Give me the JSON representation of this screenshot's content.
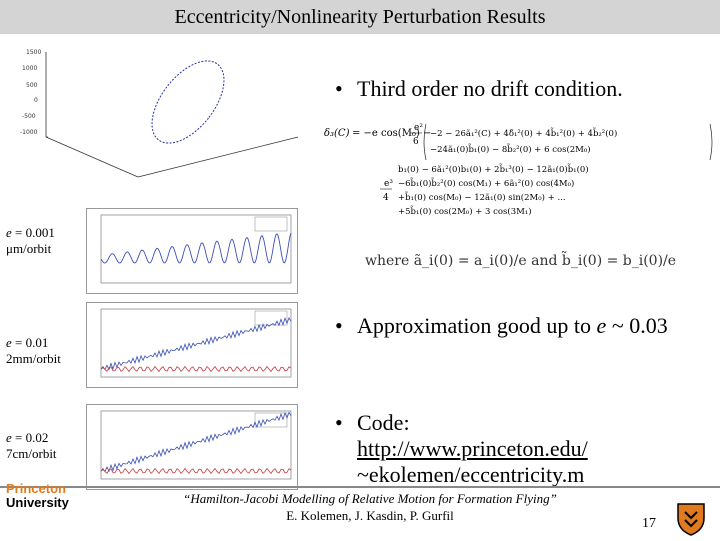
{
  "title": "Eccentricity/Nonlinearity Perturbation Results",
  "bullets": {
    "b1": "Third order no drift condition.",
    "b2_prefix": "Approximation good up to ",
    "b2_var": "e",
    "b2_suffix": " ~ 0.03",
    "b3_label": "Code:",
    "b3_link": "http://www.princeton.edu/",
    "b3_rest": "~ekolemen/eccentricity.m"
  },
  "plot_labels": [
    {
      "var": "e",
      "eq": " = 0.001",
      "unit": "μm/orbit"
    },
    {
      "var": "e",
      "eq": " = 0.01",
      "unit": "2mm/orbit"
    },
    {
      "var": "e",
      "eq": " = 0.02",
      "unit": "7cm/orbit"
    }
  ],
  "equation": {
    "lhs": "δ₃(C) = −e cos(M₀) − ",
    "where": "where ã_i(0) = a_i(0)/e and b̃_i(0) = b_i(0)/e"
  },
  "footer": {
    "cite_italic": "“Hamilton-Jacobi Modelling of Relative Motion for Formation Flying”",
    "authors": "E. Kolemen, J. Kasdin, P. Gurfil",
    "page": "17",
    "logo_line1": "Princeton",
    "logo_line2": "University"
  },
  "colors": {
    "title_bg": "#d4d4d4",
    "series_blue": "#3a4fb5",
    "series_red": "#c83a3a",
    "accent_orange": "#e07a1f"
  }
}
